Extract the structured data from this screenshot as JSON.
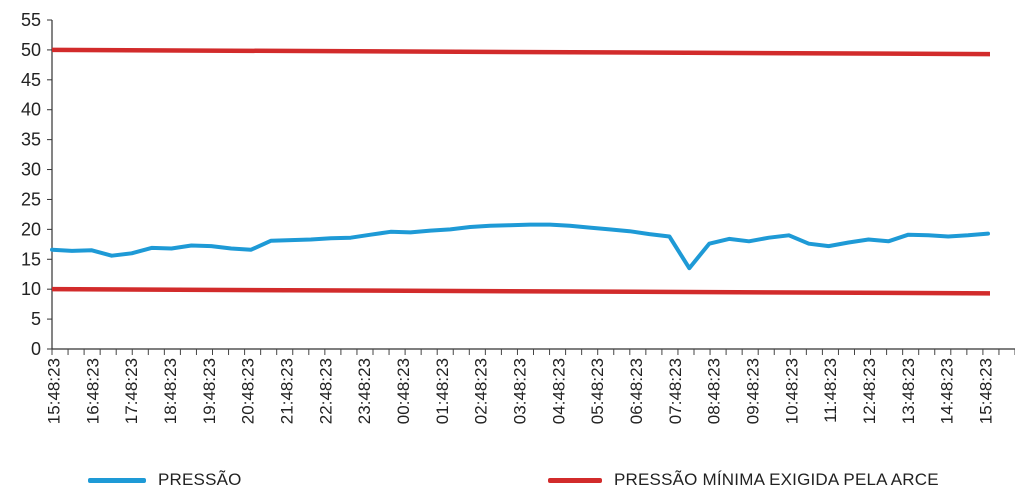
{
  "chart_data": {
    "type": "line",
    "y_ticks": [
      0,
      5,
      10,
      15,
      20,
      25,
      30,
      35,
      40,
      45,
      50,
      55
    ],
    "ylim": [
      0,
      55
    ],
    "x_tick_labels": [
      "15:48:23",
      "16:48:23",
      "17:48:23",
      "18:48:23",
      "19:48:23",
      "20:48:23",
      "21:48:23",
      "22:48:23",
      "23:48:23",
      "00:48:23",
      "01:48:23",
      "02:48:23",
      "03:48:23",
      "04:48:23",
      "05:48:23",
      "06:48:23",
      "07:48:23",
      "08:48:23",
      "09:48:23",
      "10:48:23",
      "11:48:23",
      "12:48:23",
      "13:48:23",
      "14:48:23",
      "15:48:23"
    ],
    "grid": false,
    "legend_position": "bottom",
    "series": [
      {
        "name": "PRESSÃO",
        "color": "#1e9ad6",
        "values": [
          16.6,
          16.4,
          16.5,
          15.6,
          16.0,
          16.9,
          16.8,
          17.3,
          17.2,
          16.8,
          16.6,
          18.1,
          18.2,
          18.3,
          18.5,
          18.6,
          19.1,
          19.6,
          19.5,
          19.8,
          20.0,
          20.4,
          20.6,
          20.7,
          20.8,
          20.8,
          20.6,
          20.3,
          20.0,
          19.7,
          19.2,
          18.8,
          13.5,
          17.6,
          18.4,
          18.0,
          18.6,
          19.0,
          17.6,
          17.2,
          17.8,
          18.3,
          18.0,
          19.1,
          19.0,
          18.8,
          19.0,
          19.3
        ]
      },
      {
        "name": "PRESSÃO MÍNIMA EXIGIDA PELA ARCE",
        "color": "#d22b2b",
        "lines": [
          {
            "start": 50.0,
            "end": 49.3
          },
          {
            "start": 10.0,
            "end": 9.3
          }
        ]
      }
    ]
  }
}
